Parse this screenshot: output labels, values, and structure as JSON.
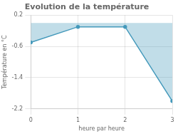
{
  "chart_data": {
    "type": "area",
    "title": "Evolution de la température",
    "xlabel": "heure par heure",
    "ylabel": "Température en °C",
    "x": [
      0,
      1,
      2,
      3
    ],
    "values": [
      -0.5,
      -0.1,
      -0.1,
      -2.0
    ],
    "color": "#4499bb",
    "xlim": [
      0,
      3
    ],
    "xticks": [
      0,
      1,
      2,
      3
    ],
    "ylim": [
      -2.2,
      0.2
    ],
    "yticks": [
      0.2,
      -0.6,
      -1.4,
      -2.2
    ],
    "grid": true
  }
}
